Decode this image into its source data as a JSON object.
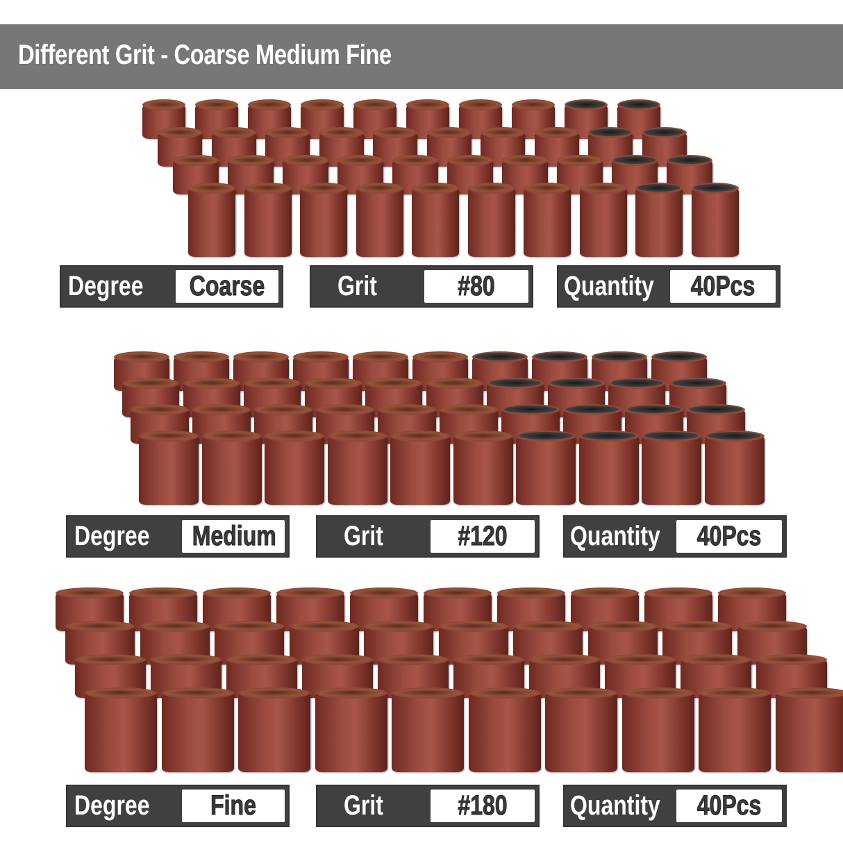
{
  "title": "Different Grit - Coarse Medium Fine",
  "groups": [
    {
      "degree_label": "Degree",
      "degree": "Coarse",
      "grit_label": "Grit",
      "grit": "#80",
      "quantity_label": "Quantity",
      "quantity": "40Pcs"
    },
    {
      "degree_label": "Degree",
      "degree": "Medium",
      "grit_label": "Grit",
      "grit": "#120",
      "quantity_label": "Quantity",
      "quantity": "40Pcs"
    },
    {
      "degree_label": "Degree",
      "degree": "Fine",
      "grit_label": "Grit",
      "grit": "#180",
      "quantity_label": "Quantity",
      "quantity": "40Pcs"
    }
  ],
  "colors": {
    "title_bar": "#777777",
    "label_bg": "#404040",
    "sleeve": "#9a4a3e"
  }
}
